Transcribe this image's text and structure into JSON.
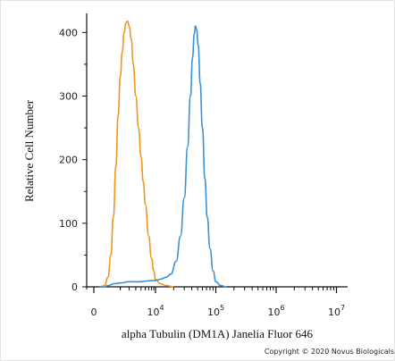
{
  "chart_data": {
    "type": "line",
    "xlabel": "alpha Tubulin (DM1A) Janelia Fluor 646",
    "ylabel": "Relative Cell Number",
    "x_scale": "biexponential",
    "x_ticks": [
      {
        "value": 0,
        "base": "0",
        "exp": ""
      },
      {
        "value": 10000,
        "base": "10",
        "exp": "4"
      },
      {
        "value": 100000,
        "base": "10",
        "exp": "5"
      },
      {
        "value": 1000000,
        "base": "10",
        "exp": "6"
      },
      {
        "value": 10000000,
        "base": "10",
        "exp": "7"
      }
    ],
    "y_ticks": [
      0,
      100,
      200,
      300,
      400
    ],
    "ylim": [
      0,
      430
    ],
    "grid": false,
    "series": [
      {
        "color": "#f0951e",
        "points": [
          [
            500,
            0
          ],
          [
            800,
            2
          ],
          [
            1000,
            15
          ],
          [
            1200,
            50
          ],
          [
            1400,
            110
          ],
          [
            1600,
            190
          ],
          [
            1800,
            270
          ],
          [
            2000,
            330
          ],
          [
            2200,
            370
          ],
          [
            2400,
            400
          ],
          [
            2600,
            415
          ],
          [
            2800,
            418
          ],
          [
            3000,
            410
          ],
          [
            3300,
            390
          ],
          [
            3600,
            350
          ],
          [
            4000,
            300
          ],
          [
            4500,
            250
          ],
          [
            5000,
            205
          ],
          [
            5500,
            165
          ],
          [
            6000,
            130
          ],
          [
            7000,
            80
          ],
          [
            8000,
            45
          ],
          [
            9000,
            25
          ],
          [
            10000,
            12
          ],
          [
            12000,
            5
          ],
          [
            15000,
            2
          ],
          [
            20000,
            0
          ]
        ]
      },
      {
        "color": "#3a8fd6",
        "points": [
          [
            500,
            0
          ],
          [
            800,
            0
          ],
          [
            1000,
            2
          ],
          [
            1500,
            5
          ],
          [
            2000,
            6
          ],
          [
            3000,
            8
          ],
          [
            4000,
            8
          ],
          [
            5000,
            8
          ],
          [
            6000,
            9
          ],
          [
            8000,
            10
          ],
          [
            10000,
            10
          ],
          [
            12000,
            12
          ],
          [
            15000,
            15
          ],
          [
            18000,
            20
          ],
          [
            22000,
            40
          ],
          [
            26000,
            80
          ],
          [
            30000,
            140
          ],
          [
            34000,
            220
          ],
          [
            38000,
            300
          ],
          [
            41000,
            360
          ],
          [
            44000,
            398
          ],
          [
            46000,
            410
          ],
          [
            48000,
            405
          ],
          [
            51000,
            380
          ],
          [
            55000,
            320
          ],
          [
            60000,
            250
          ],
          [
            66000,
            170
          ],
          [
            72000,
            110
          ],
          [
            80000,
            60
          ],
          [
            90000,
            25
          ],
          [
            100000,
            8
          ],
          [
            120000,
            2
          ],
          [
            150000,
            0
          ]
        ]
      }
    ]
  },
  "copyright": "Copyright © 2020 Novus Biologicals"
}
